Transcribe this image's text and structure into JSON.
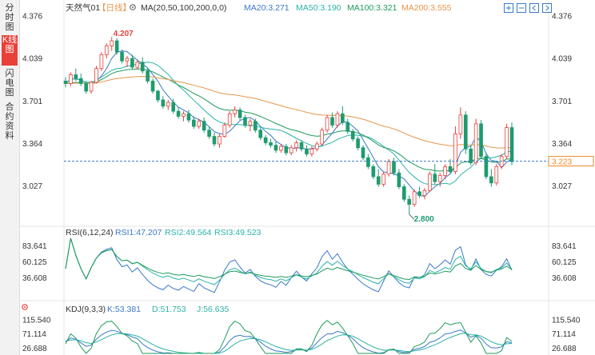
{
  "sidebar": {
    "tabs": [
      {
        "label": "分时图",
        "active": false
      },
      {
        "label": "K线图",
        "active": true
      },
      {
        "label": "闪电图",
        "active": false
      },
      {
        "label": "合约资料",
        "active": false
      }
    ]
  },
  "header": {
    "symbol": "天然气01",
    "period": "【日线】",
    "ma_label": "MA(20,50,100,200,0,0)",
    "ma20": "MA20:3.271",
    "ma50": "MA50:3.190",
    "ma100": "MA100:3.321",
    "ma200": "MA200:3.555"
  },
  "rsi_header": {
    "label": "RSI(6,12,24)",
    "rsi1": "RSI1:47.207",
    "rsi2": "RSI2:49.564",
    "rsi3": "RSI3:49.523"
  },
  "kdj_header": {
    "label": "KDJ(9,3,3)",
    "k": "K:53.381",
    "d": "D:51.753",
    "j": "J:56.635"
  },
  "colors": {
    "up": "#e8413a",
    "down": "#1e9b6e",
    "ma20": "#3a78c8",
    "ma50": "#2ab3a6",
    "ma100": "#1f9b5a",
    "ma200": "#e8954a",
    "price_tag": "#f08a24",
    "rsi_line": "#3a78c8"
  },
  "chart_data": [
    {
      "type": "candlestick",
      "title": "天然气01【日线】",
      "y_ticks": [
        4.376,
        4.039,
        3.701,
        3.364,
        3.027
      ],
      "ylim": [
        2.75,
        4.39
      ],
      "annotations": {
        "high": 4.207,
        "low": 2.8
      },
      "current_price": 3.223,
      "ma_last": {
        "MA20": 3.271,
        "MA50": 3.19,
        "MA100": 3.321,
        "MA200": 3.555
      },
      "candles": [
        [
          3.86,
          3.89,
          3.81,
          3.84
        ],
        [
          3.84,
          3.93,
          3.82,
          3.91
        ],
        [
          3.91,
          3.96,
          3.86,
          3.88
        ],
        [
          3.88,
          3.92,
          3.82,
          3.84
        ],
        [
          3.84,
          3.86,
          3.76,
          3.78
        ],
        [
          3.78,
          3.86,
          3.76,
          3.85
        ],
        [
          3.85,
          3.98,
          3.84,
          3.96
        ],
        [
          3.96,
          4.09,
          3.94,
          4.07
        ],
        [
          4.07,
          4.16,
          4.04,
          4.14
        ],
        [
          4.14,
          4.21,
          4.1,
          4.18
        ],
        [
          4.18,
          4.2,
          4.07,
          4.09
        ],
        [
          4.09,
          4.11,
          4.0,
          4.02
        ],
        [
          4.02,
          4.06,
          3.97,
          4.04
        ],
        [
          4.04,
          4.07,
          3.95,
          3.97
        ],
        [
          3.97,
          4.03,
          3.95,
          4.01
        ],
        [
          4.01,
          4.05,
          3.92,
          3.94
        ],
        [
          3.94,
          3.97,
          3.84,
          3.86
        ],
        [
          3.86,
          3.88,
          3.76,
          3.78
        ],
        [
          3.78,
          3.79,
          3.69,
          3.71
        ],
        [
          3.71,
          3.74,
          3.64,
          3.66
        ],
        [
          3.66,
          3.71,
          3.63,
          3.69
        ],
        [
          3.69,
          3.72,
          3.6,
          3.62
        ],
        [
          3.62,
          3.65,
          3.56,
          3.58
        ],
        [
          3.58,
          3.62,
          3.54,
          3.6
        ],
        [
          3.6,
          3.63,
          3.53,
          3.55
        ],
        [
          3.55,
          3.58,
          3.48,
          3.5
        ],
        [
          3.5,
          3.56,
          3.48,
          3.54
        ],
        [
          3.54,
          3.57,
          3.45,
          3.47
        ],
        [
          3.47,
          3.5,
          3.4,
          3.42
        ],
        [
          3.42,
          3.45,
          3.34,
          3.36
        ],
        [
          3.36,
          3.44,
          3.33,
          3.42
        ],
        [
          3.42,
          3.53,
          3.41,
          3.51
        ],
        [
          3.51,
          3.62,
          3.49,
          3.6
        ],
        [
          3.6,
          3.66,
          3.57,
          3.63
        ],
        [
          3.63,
          3.65,
          3.55,
          3.57
        ],
        [
          3.57,
          3.59,
          3.49,
          3.51
        ],
        [
          3.51,
          3.56,
          3.46,
          3.54
        ],
        [
          3.54,
          3.56,
          3.45,
          3.47
        ],
        [
          3.47,
          3.49,
          3.39,
          3.41
        ],
        [
          3.41,
          3.43,
          3.35,
          3.37
        ],
        [
          3.37,
          3.4,
          3.33,
          3.35
        ],
        [
          3.35,
          3.38,
          3.29,
          3.31
        ],
        [
          3.31,
          3.36,
          3.29,
          3.34
        ],
        [
          3.34,
          3.36,
          3.27,
          3.29
        ],
        [
          3.29,
          3.35,
          3.27,
          3.33
        ],
        [
          3.33,
          3.39,
          3.3,
          3.37
        ],
        [
          3.37,
          3.39,
          3.3,
          3.32
        ],
        [
          3.32,
          3.35,
          3.26,
          3.28
        ],
        [
          3.28,
          3.34,
          3.26,
          3.32
        ],
        [
          3.32,
          3.38,
          3.3,
          3.36
        ],
        [
          3.36,
          3.49,
          3.35,
          3.47
        ],
        [
          3.47,
          3.59,
          3.45,
          3.57
        ],
        [
          3.57,
          3.61,
          3.49,
          3.51
        ],
        [
          3.51,
          3.62,
          3.49,
          3.6
        ],
        [
          3.6,
          3.66,
          3.51,
          3.53
        ],
        [
          3.53,
          3.56,
          3.44,
          3.46
        ],
        [
          3.46,
          3.48,
          3.38,
          3.4
        ],
        [
          3.4,
          3.42,
          3.31,
          3.33
        ],
        [
          3.33,
          3.35,
          3.23,
          3.25
        ],
        [
          3.25,
          3.28,
          3.16,
          3.18
        ],
        [
          3.18,
          3.2,
          3.08,
          3.1
        ],
        [
          3.1,
          3.16,
          3.02,
          3.04
        ],
        [
          3.04,
          3.14,
          3.02,
          3.12
        ],
        [
          3.12,
          3.24,
          3.1,
          3.22
        ],
        [
          3.22,
          3.25,
          3.11,
          3.13
        ],
        [
          3.13,
          3.16,
          3.0,
          3.02
        ],
        [
          3.02,
          3.04,
          2.9,
          2.92
        ],
        [
          2.92,
          2.95,
          2.8,
          2.88
        ],
        [
          2.88,
          3.0,
          2.86,
          2.98
        ],
        [
          2.98,
          3.02,
          2.93,
          2.95
        ],
        [
          2.95,
          3.01,
          2.92,
          2.99
        ],
        [
          2.99,
          3.14,
          2.98,
          3.12
        ],
        [
          3.12,
          3.2,
          3.04,
          3.06
        ],
        [
          3.06,
          3.13,
          3.02,
          3.11
        ],
        [
          3.11,
          3.2,
          3.08,
          3.18
        ],
        [
          3.18,
          3.24,
          3.12,
          3.14
        ],
        [
          3.14,
          3.5,
          3.12,
          3.44
        ],
        [
          3.44,
          3.65,
          3.4,
          3.59
        ],
        [
          3.59,
          3.62,
          3.28,
          3.32
        ],
        [
          3.32,
          3.35,
          3.19,
          3.21
        ],
        [
          3.21,
          3.56,
          3.19,
          3.52
        ],
        [
          3.52,
          3.55,
          3.24,
          3.26
        ],
        [
          3.26,
          3.29,
          3.08,
          3.1
        ],
        [
          3.1,
          3.16,
          3.02,
          3.05
        ],
        [
          3.05,
          3.2,
          3.03,
          3.18
        ],
        [
          3.18,
          3.28,
          3.16,
          3.26
        ],
        [
          3.26,
          3.52,
          3.24,
          3.49
        ],
        [
          3.49,
          3.53,
          3.19,
          3.22
        ]
      ]
    },
    {
      "type": "line",
      "title": "RSI(6,12,24)",
      "y_ticks": [
        83.641,
        60.125,
        36.608
      ],
      "ylim": [
        10,
        95
      ],
      "series": [
        {
          "name": "RSI1",
          "last": 47.207
        },
        {
          "name": "RSI2",
          "last": 49.564
        },
        {
          "name": "RSI3",
          "last": 49.523
        }
      ]
    },
    {
      "type": "line",
      "title": "KDJ(9,3,3)",
      "y_ticks": [
        115.54,
        71.114,
        26.688
      ],
      "ylim": [
        10,
        130
      ],
      "series": [
        {
          "name": "K",
          "last": 53.381
        },
        {
          "name": "D",
          "last": 51.753
        },
        {
          "name": "J",
          "last": 56.635
        }
      ]
    }
  ]
}
